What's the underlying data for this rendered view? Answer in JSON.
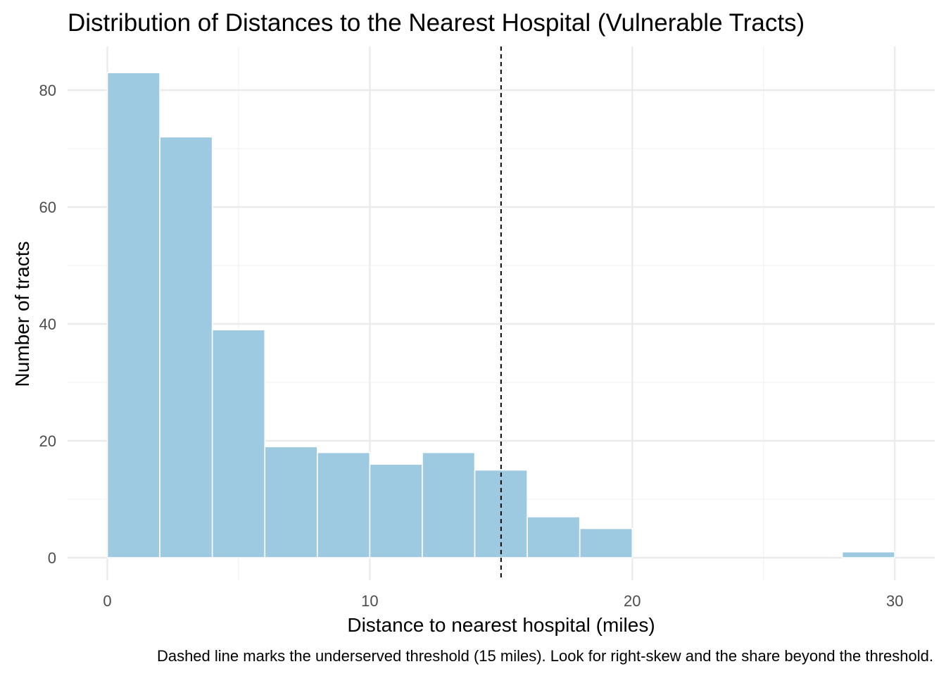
{
  "chart_data": {
    "type": "bar",
    "title": "Distribution of Distances to the Nearest Hospital (Vulnerable Tracts)",
    "xlabel": "Distance to nearest hospital (miles)",
    "ylabel": "Number of tracts",
    "caption": "Dashed line marks the underserved threshold (15 miles). Look for right-skew and the share beyond the threshold.",
    "xlim": [
      0,
      30
    ],
    "ylim": [
      0,
      83
    ],
    "x_ticks": [
      0,
      10,
      20,
      30
    ],
    "x_tick_labels": [
      "0",
      "10",
      "20",
      "30"
    ],
    "y_ticks": [
      0,
      20,
      40,
      60,
      80
    ],
    "y_tick_labels": [
      "0",
      "20",
      "40",
      "60",
      "80"
    ],
    "bin_width": 2,
    "bins": [
      {
        "start": 0,
        "end": 2,
        "count": 83
      },
      {
        "start": 2,
        "end": 4,
        "count": 72
      },
      {
        "start": 4,
        "end": 6,
        "count": 39
      },
      {
        "start": 6,
        "end": 8,
        "count": 19
      },
      {
        "start": 8,
        "end": 10,
        "count": 18
      },
      {
        "start": 10,
        "end": 12,
        "count": 16
      },
      {
        "start": 12,
        "end": 14,
        "count": 18
      },
      {
        "start": 14,
        "end": 16,
        "count": 15
      },
      {
        "start": 16,
        "end": 18,
        "count": 7
      },
      {
        "start": 18,
        "end": 20,
        "count": 5
      },
      {
        "start": 20,
        "end": 22,
        "count": 0
      },
      {
        "start": 22,
        "end": 24,
        "count": 0
      },
      {
        "start": 24,
        "end": 26,
        "count": 0
      },
      {
        "start": 26,
        "end": 28,
        "count": 0
      },
      {
        "start": 28,
        "end": 30,
        "count": 1
      }
    ],
    "threshold": 15,
    "bar_color": "#9ecae1",
    "bar_border_color": "#ffffff",
    "threshold_line_color": "#000000",
    "grid": true,
    "legend": "none"
  }
}
